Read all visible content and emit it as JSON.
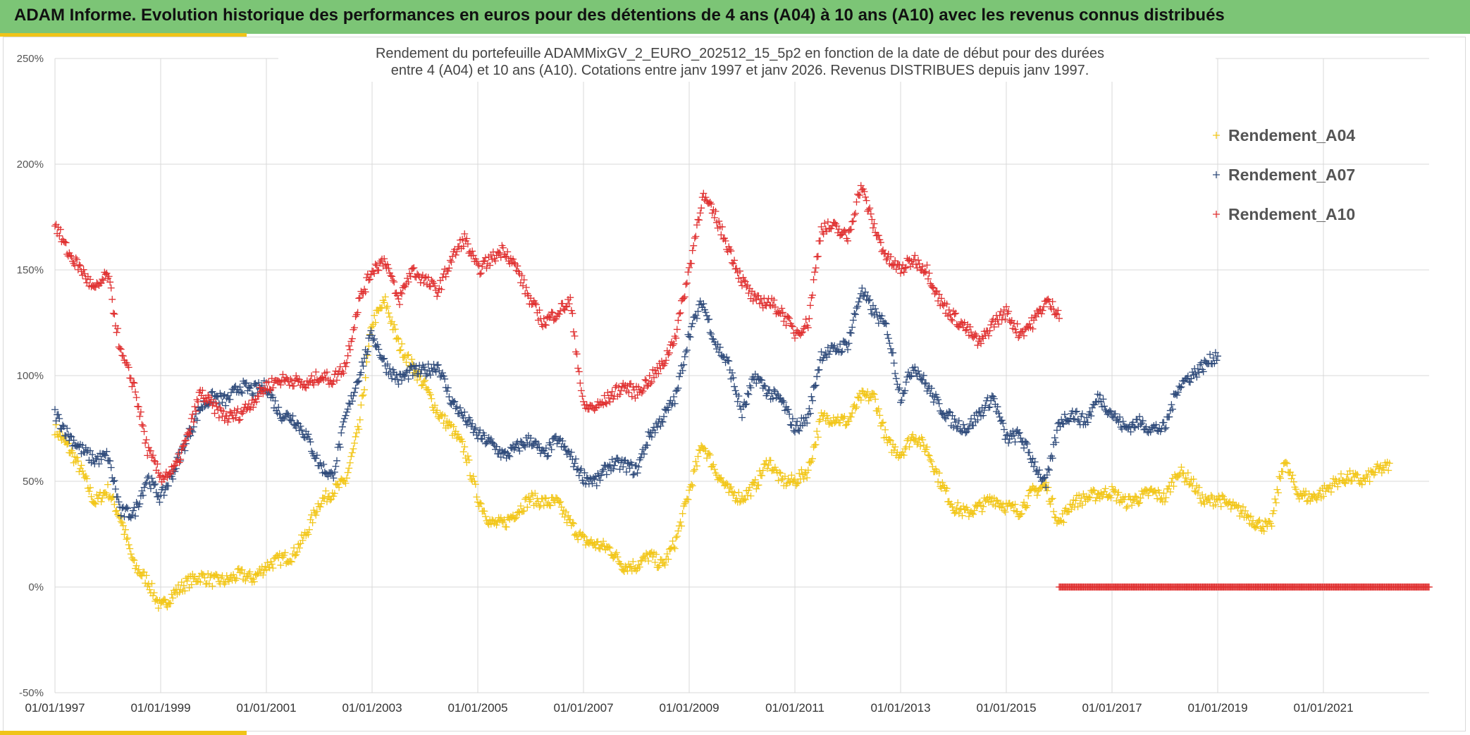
{
  "header": {
    "title": "ADAM Informe. Evolution historique des performances en euros pour des détentions de 4 ans (A04) à 10 ans (A10) avec les revenus connus distribués"
  },
  "chart_data": {
    "type": "scatter",
    "title_lines": [
      "Rendement du portefeuille ADAMMixGV_2_EURO_202512_15_5p2  en fonction de la date de début pour des durées",
      "entre 4 (A04) et 10 ans (A10). Cotations entre janv 1997 et janv 2026. Revenus DISTRIBUES depuis janv 1997."
    ],
    "y_ticks": [
      "250%",
      "200%",
      "150%",
      "100%",
      "50%",
      "0%",
      "-50%"
    ],
    "x_ticks": [
      "01/01/1997",
      "01/01/1999",
      "01/01/2001",
      "01/01/2003",
      "01/01/2005",
      "01/01/2007",
      "01/01/2009",
      "01/01/2011",
      "01/01/2013",
      "01/01/2015",
      "01/01/2017",
      "01/01/2019",
      "01/01/2021"
    ],
    "ylim": [
      -0.5,
      2.5
    ],
    "xlim": [
      "1997-01-01",
      "2023-01-01"
    ],
    "marker": "+",
    "grid": true,
    "legend_position": "right",
    "series": [
      {
        "name": "Rendement_A04",
        "color": "#f2c618",
        "points": [
          [
            "1997-01",
            0.75
          ],
          [
            "1997-04",
            0.66
          ],
          [
            "1997-07",
            0.55
          ],
          [
            "1997-10",
            0.4
          ],
          [
            "1998-01",
            0.46
          ],
          [
            "1998-04",
            0.32
          ],
          [
            "1998-07",
            0.1
          ],
          [
            "1998-10",
            0.03
          ],
          [
            "1999-01",
            -0.1
          ],
          [
            "1999-04",
            -0.03
          ],
          [
            "1999-07",
            0.02
          ],
          [
            "1999-10",
            0.05
          ],
          [
            "2000-01",
            0.03
          ],
          [
            "2000-04",
            0.03
          ],
          [
            "2000-07",
            0.06
          ],
          [
            "2000-10",
            0.04
          ],
          [
            "2001-01",
            0.1
          ],
          [
            "2001-04",
            0.13
          ],
          [
            "2001-07",
            0.15
          ],
          [
            "2001-10",
            0.25
          ],
          [
            "2002-01",
            0.4
          ],
          [
            "2002-04",
            0.45
          ],
          [
            "2002-07",
            0.5
          ],
          [
            "2002-10",
            0.75
          ],
          [
            "2003-01",
            1.25
          ],
          [
            "2003-04",
            1.35
          ],
          [
            "2003-07",
            1.15
          ],
          [
            "2003-10",
            1.05
          ],
          [
            "2004-01",
            0.95
          ],
          [
            "2004-04",
            0.82
          ],
          [
            "2004-07",
            0.75
          ],
          [
            "2004-10",
            0.65
          ],
          [
            "2005-01",
            0.42
          ],
          [
            "2005-04",
            0.3
          ],
          [
            "2005-07",
            0.3
          ],
          [
            "2005-10",
            0.36
          ],
          [
            "2006-01",
            0.42
          ],
          [
            "2006-04",
            0.4
          ],
          [
            "2006-07",
            0.4
          ],
          [
            "2006-10",
            0.3
          ],
          [
            "2007-01",
            0.22
          ],
          [
            "2007-04",
            0.2
          ],
          [
            "2007-07",
            0.18
          ],
          [
            "2007-10",
            0.1
          ],
          [
            "2008-01",
            0.1
          ],
          [
            "2008-04",
            0.15
          ],
          [
            "2008-07",
            0.1
          ],
          [
            "2008-10",
            0.22
          ],
          [
            "2009-01",
            0.45
          ],
          [
            "2009-04",
            0.68
          ],
          [
            "2009-07",
            0.55
          ],
          [
            "2009-10",
            0.45
          ],
          [
            "2010-01",
            0.42
          ],
          [
            "2010-04",
            0.48
          ],
          [
            "2010-07",
            0.6
          ],
          [
            "2010-10",
            0.5
          ],
          [
            "2011-01",
            0.5
          ],
          [
            "2011-04",
            0.55
          ],
          [
            "2011-07",
            0.8
          ],
          [
            "2011-10",
            0.8
          ],
          [
            "2012-01",
            0.78
          ],
          [
            "2012-04",
            0.9
          ],
          [
            "2012-07",
            0.9
          ],
          [
            "2012-10",
            0.68
          ],
          [
            "2013-01",
            0.63
          ],
          [
            "2013-04",
            0.72
          ],
          [
            "2013-07",
            0.65
          ],
          [
            "2013-10",
            0.5
          ],
          [
            "2014-01",
            0.38
          ],
          [
            "2014-04",
            0.35
          ],
          [
            "2014-07",
            0.38
          ],
          [
            "2014-10",
            0.42
          ],
          [
            "2015-01",
            0.38
          ],
          [
            "2015-04",
            0.36
          ],
          [
            "2015-07",
            0.45
          ],
          [
            "2015-10",
            0.48
          ],
          [
            "2016-01",
            0.3
          ],
          [
            "2016-04",
            0.4
          ],
          [
            "2016-07",
            0.42
          ],
          [
            "2016-10",
            0.44
          ],
          [
            "2017-01",
            0.45
          ],
          [
            "2017-04",
            0.4
          ],
          [
            "2017-07",
            0.42
          ],
          [
            "2017-10",
            0.45
          ],
          [
            "2018-01",
            0.42
          ],
          [
            "2018-04",
            0.55
          ],
          [
            "2018-07",
            0.5
          ],
          [
            "2018-10",
            0.4
          ],
          [
            "2019-01",
            0.42
          ],
          [
            "2019-04",
            0.38
          ],
          [
            "2019-07",
            0.35
          ],
          [
            "2019-10",
            0.3
          ],
          [
            "2020-01",
            0.28
          ],
          [
            "2020-04",
            0.6
          ],
          [
            "2020-07",
            0.45
          ],
          [
            "2020-10",
            0.42
          ],
          [
            "2021-01",
            0.45
          ],
          [
            "2021-04",
            0.5
          ],
          [
            "2021-07",
            0.52
          ],
          [
            "2021-10",
            0.5
          ],
          [
            "2022-01",
            0.55
          ],
          [
            "2022-04",
            0.57
          ]
        ]
      },
      {
        "name": "Rendement_A07",
        "color": "#2e4a7a",
        "points": [
          [
            "1997-01",
            0.82
          ],
          [
            "1997-04",
            0.72
          ],
          [
            "1997-07",
            0.65
          ],
          [
            "1997-10",
            0.6
          ],
          [
            "1998-01",
            0.62
          ],
          [
            "1998-04",
            0.35
          ],
          [
            "1998-07",
            0.35
          ],
          [
            "1998-10",
            0.52
          ],
          [
            "1999-01",
            0.42
          ],
          [
            "1999-04",
            0.55
          ],
          [
            "1999-07",
            0.7
          ],
          [
            "1999-10",
            0.85
          ],
          [
            "2000-01",
            0.9
          ],
          [
            "2000-04",
            0.88
          ],
          [
            "2000-07",
            0.95
          ],
          [
            "2000-10",
            0.93
          ],
          [
            "2001-01",
            0.95
          ],
          [
            "2001-04",
            0.82
          ],
          [
            "2001-07",
            0.8
          ],
          [
            "2001-10",
            0.72
          ],
          [
            "2002-01",
            0.58
          ],
          [
            "2002-04",
            0.52
          ],
          [
            "2002-07",
            0.8
          ],
          [
            "2002-10",
            1.0
          ],
          [
            "2003-01",
            1.2
          ],
          [
            "2003-04",
            1.05
          ],
          [
            "2003-07",
            0.98
          ],
          [
            "2003-10",
            1.02
          ],
          [
            "2004-01",
            1.02
          ],
          [
            "2004-04",
            1.05
          ],
          [
            "2004-07",
            0.88
          ],
          [
            "2004-10",
            0.8
          ],
          [
            "2005-01",
            0.72
          ],
          [
            "2005-04",
            0.68
          ],
          [
            "2005-07",
            0.62
          ],
          [
            "2005-10",
            0.66
          ],
          [
            "2006-01",
            0.7
          ],
          [
            "2006-04",
            0.62
          ],
          [
            "2006-07",
            0.7
          ],
          [
            "2006-10",
            0.62
          ],
          [
            "2007-01",
            0.52
          ],
          [
            "2007-04",
            0.5
          ],
          [
            "2007-07",
            0.58
          ],
          [
            "2007-10",
            0.58
          ],
          [
            "2008-01",
            0.55
          ],
          [
            "2008-04",
            0.72
          ],
          [
            "2008-07",
            0.8
          ],
          [
            "2008-10",
            0.9
          ],
          [
            "2009-01",
            1.2
          ],
          [
            "2009-04",
            1.35
          ],
          [
            "2009-07",
            1.15
          ],
          [
            "2009-10",
            1.05
          ],
          [
            "2010-01",
            0.82
          ],
          [
            "2010-04",
            1.0
          ],
          [
            "2010-07",
            0.92
          ],
          [
            "2010-10",
            0.88
          ],
          [
            "2011-01",
            0.75
          ],
          [
            "2011-04",
            0.8
          ],
          [
            "2011-07",
            1.1
          ],
          [
            "2011-10",
            1.12
          ],
          [
            "2012-01",
            1.15
          ],
          [
            "2012-04",
            1.4
          ],
          [
            "2012-07",
            1.3
          ],
          [
            "2012-10",
            1.22
          ],
          [
            "2013-01",
            0.9
          ],
          [
            "2013-04",
            1.05
          ],
          [
            "2013-07",
            0.95
          ],
          [
            "2013-10",
            0.85
          ],
          [
            "2014-01",
            0.78
          ],
          [
            "2014-04",
            0.75
          ],
          [
            "2014-07",
            0.82
          ],
          [
            "2014-10",
            0.9
          ],
          [
            "2015-01",
            0.7
          ],
          [
            "2015-04",
            0.72
          ],
          [
            "2015-07",
            0.6
          ],
          [
            "2015-10",
            0.48
          ],
          [
            "2016-01",
            0.78
          ],
          [
            "2016-04",
            0.82
          ],
          [
            "2016-07",
            0.78
          ],
          [
            "2016-10",
            0.9
          ],
          [
            "2017-01",
            0.82
          ],
          [
            "2017-04",
            0.75
          ],
          [
            "2017-07",
            0.78
          ],
          [
            "2017-10",
            0.75
          ],
          [
            "2018-01",
            0.75
          ],
          [
            "2018-04",
            0.95
          ],
          [
            "2018-07",
            1.0
          ],
          [
            "2018-10",
            1.05
          ],
          [
            "2019-01",
            1.1
          ]
        ]
      },
      {
        "name": "Rendement_A10",
        "color": "#e03030",
        "points": [
          [
            "1997-01",
            1.72
          ],
          [
            "1997-04",
            1.58
          ],
          [
            "1997-07",
            1.5
          ],
          [
            "1997-10",
            1.4
          ],
          [
            "1998-01",
            1.48
          ],
          [
            "1998-04",
            1.1
          ],
          [
            "1998-07",
            0.95
          ],
          [
            "1998-10",
            0.65
          ],
          [
            "1999-01",
            0.52
          ],
          [
            "1999-04",
            0.55
          ],
          [
            "1999-07",
            0.7
          ],
          [
            "1999-10",
            0.92
          ],
          [
            "2000-01",
            0.85
          ],
          [
            "2000-04",
            0.8
          ],
          [
            "2000-07",
            0.82
          ],
          [
            "2000-10",
            0.88
          ],
          [
            "2001-01",
            0.95
          ],
          [
            "2001-04",
            0.98
          ],
          [
            "2001-07",
            0.98
          ],
          [
            "2001-10",
            0.95
          ],
          [
            "2002-01",
            1.0
          ],
          [
            "2002-04",
            0.98
          ],
          [
            "2002-07",
            1.05
          ],
          [
            "2002-10",
            1.35
          ],
          [
            "2003-01",
            1.5
          ],
          [
            "2003-04",
            1.55
          ],
          [
            "2003-07",
            1.35
          ],
          [
            "2003-10",
            1.5
          ],
          [
            "2004-01",
            1.45
          ],
          [
            "2004-04",
            1.4
          ],
          [
            "2004-07",
            1.55
          ],
          [
            "2004-10",
            1.65
          ],
          [
            "2005-01",
            1.5
          ],
          [
            "2005-04",
            1.55
          ],
          [
            "2005-07",
            1.6
          ],
          [
            "2005-10",
            1.5
          ],
          [
            "2006-01",
            1.35
          ],
          [
            "2006-04",
            1.25
          ],
          [
            "2006-07",
            1.3
          ],
          [
            "2006-10",
            1.35
          ],
          [
            "2007-01",
            0.85
          ],
          [
            "2007-04",
            0.85
          ],
          [
            "2007-07",
            0.9
          ],
          [
            "2007-10",
            0.95
          ],
          [
            "2008-01",
            0.92
          ],
          [
            "2008-04",
            0.98
          ],
          [
            "2008-07",
            1.05
          ],
          [
            "2008-10",
            1.2
          ],
          [
            "2009-01",
            1.5
          ],
          [
            "2009-04",
            1.85
          ],
          [
            "2009-07",
            1.75
          ],
          [
            "2009-10",
            1.6
          ],
          [
            "2010-01",
            1.45
          ],
          [
            "2010-04",
            1.35
          ],
          [
            "2010-07",
            1.35
          ],
          [
            "2010-10",
            1.3
          ],
          [
            "2011-01",
            1.2
          ],
          [
            "2011-04",
            1.25
          ],
          [
            "2011-07",
            1.7
          ],
          [
            "2011-10",
            1.7
          ],
          [
            "2012-01",
            1.65
          ],
          [
            "2012-04",
            1.9
          ],
          [
            "2012-07",
            1.7
          ],
          [
            "2012-10",
            1.55
          ],
          [
            "2013-01",
            1.5
          ],
          [
            "2013-04",
            1.55
          ],
          [
            "2013-07",
            1.5
          ],
          [
            "2013-10",
            1.35
          ],
          [
            "2014-01",
            1.28
          ],
          [
            "2014-04",
            1.22
          ],
          [
            "2014-07",
            1.15
          ],
          [
            "2014-10",
            1.25
          ],
          [
            "2015-01",
            1.3
          ],
          [
            "2015-04",
            1.2
          ],
          [
            "2015-07",
            1.25
          ],
          [
            "2015-10",
            1.35
          ],
          [
            "2016-01",
            1.3
          ]
        ]
      }
    ],
    "zero_band": {
      "color": "#e03030",
      "from": "2016-01",
      "to": "2023-01",
      "value": 0
    }
  }
}
